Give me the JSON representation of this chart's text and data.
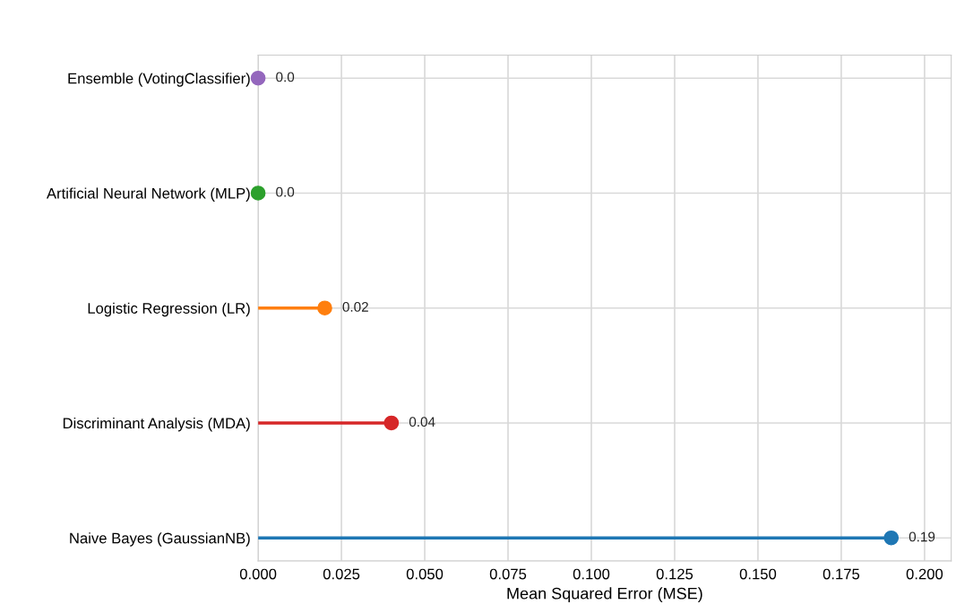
{
  "chart_data": {
    "type": "lollipop",
    "orientation": "horizontal",
    "xlabel": "Mean Squared Error (MSE)",
    "categories": [
      "Ensemble (VotingClassifier)",
      "Artificial Neural Network (MLP)",
      "Logistic Regression (LR)",
      "Discriminant Analysis (MDA)",
      "Naive Bayes (GaussianNB)"
    ],
    "values": [
      0.0,
      0.0,
      0.02,
      0.04,
      0.19
    ],
    "value_labels": [
      "0.0",
      "0.0",
      "0.02",
      "0.04",
      "0.19"
    ],
    "colors": [
      "#9467bd",
      "#2ca02c",
      "#ff7f0e",
      "#d62728",
      "#1f77b4"
    ],
    "xlim": [
      0,
      0.208
    ],
    "xticks": [
      {
        "value": 0,
        "label": "0.000"
      },
      {
        "value": 0.025,
        "label": "0.025"
      },
      {
        "value": 0.05,
        "label": "0.050"
      },
      {
        "value": 0.075,
        "label": "0.075"
      },
      {
        "value": 0.1,
        "label": "0.100"
      },
      {
        "value": 0.125,
        "label": "0.125"
      },
      {
        "value": 0.15,
        "label": "0.150"
      },
      {
        "value": 0.175,
        "label": "0.175"
      },
      {
        "value": 0.2,
        "label": "0.200"
      }
    ],
    "grid": true,
    "marker": "circle"
  }
}
